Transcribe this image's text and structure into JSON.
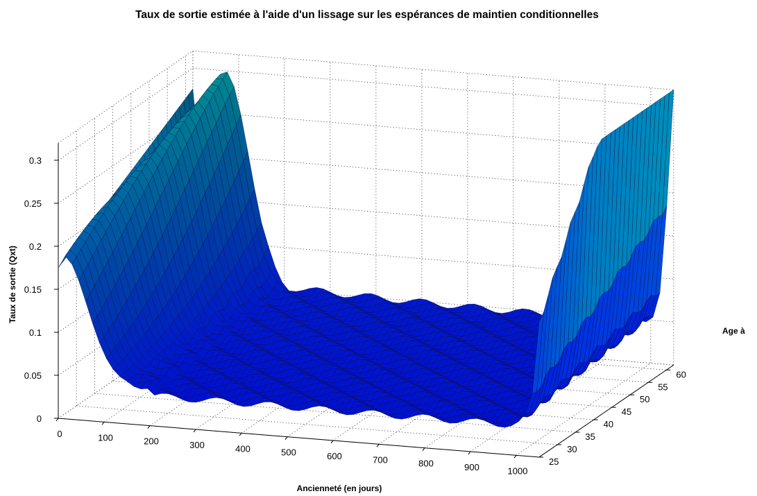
{
  "chart_data": {
    "type": "surface",
    "title": "Taux de sortie estimée à l'aide d'un lissage sur les espérances de maintien conditionnelles",
    "xlabel": "Ancienneté (en jours)",
    "ylabel": "Age à",
    "zlabel": "Taux de sortie (Qxt)",
    "xlim": [
      0,
      1050
    ],
    "ylim": [
      25,
      62
    ],
    "zlim": [
      0,
      0.32
    ],
    "x_ticks": [
      "0",
      "100",
      "200",
      "300",
      "400",
      "500",
      "600",
      "700",
      "800",
      "900",
      "1000"
    ],
    "y_ticks": [
      "25",
      "30",
      "35",
      "40",
      "45",
      "50",
      "55",
      "60"
    ],
    "z_ticks": [
      "0",
      "0.05",
      "0.1",
      "0.15",
      "0.2",
      "0.25",
      "0.3"
    ],
    "grid": true,
    "colormap": [
      "#0000ff",
      "#00b4a8"
    ]
  }
}
